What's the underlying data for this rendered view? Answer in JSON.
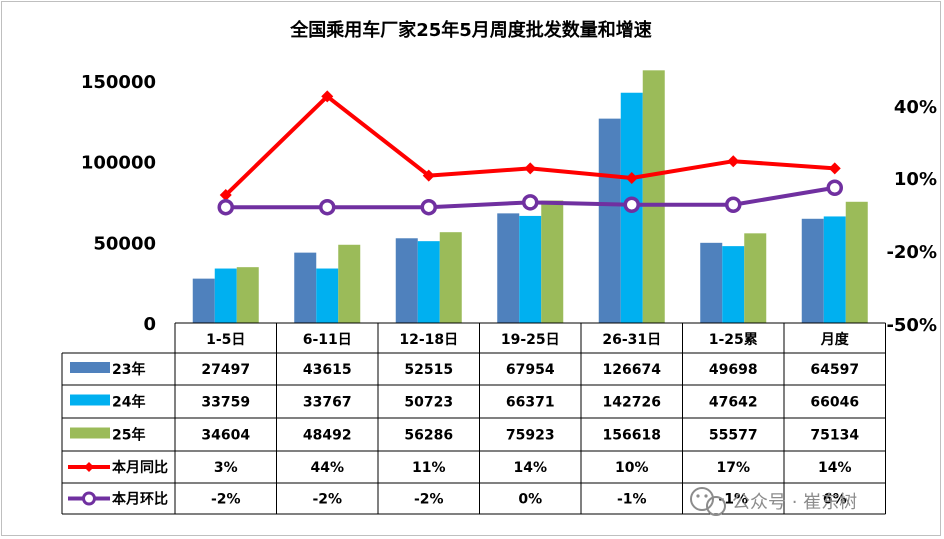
{
  "chart_data": {
    "type": "bar",
    "title": "全国乘用车厂家25年5月周度批发数量和增速",
    "categories": [
      "1-5日",
      "6-11日",
      "12-18日",
      "19-25日",
      "26-31日",
      "1-25累",
      "月度"
    ],
    "y_left": {
      "ticks": [
        "150000",
        "100000",
        "50000",
        "0"
      ],
      "ylim": [
        0,
        150000
      ]
    },
    "y_right": {
      "ticks": [
        "40%",
        "10%",
        "-20%",
        "-50%"
      ],
      "ylim": [
        -50,
        50
      ]
    },
    "series": [
      {
        "name": "23年",
        "kind": "bar",
        "color": "#4f81bd",
        "values": [
          27497,
          43615,
          52515,
          67954,
          126674,
          49698,
          64597
        ],
        "labels": [
          "27497",
          "43615",
          "52515",
          "67954",
          "126674",
          "49698",
          "64597"
        ]
      },
      {
        "name": "24年",
        "kind": "bar",
        "color": "#00b0f0",
        "values": [
          33759,
          33767,
          50723,
          66371,
          142726,
          47642,
          66046
        ],
        "labels": [
          "33759",
          "33767",
          "50723",
          "66371",
          "142726",
          "47642",
          "66046"
        ]
      },
      {
        "name": "25年",
        "kind": "bar",
        "color": "#9bbb59",
        "values": [
          34604,
          48492,
          56286,
          75923,
          156618,
          55577,
          75134
        ],
        "labels": [
          "34604",
          "48492",
          "56286",
          "75923",
          "156618",
          "55577",
          "75134"
        ]
      },
      {
        "name": "本月同比",
        "kind": "line",
        "axis": "right",
        "color": "#ff0000",
        "marker": "diamond",
        "values": [
          3,
          44,
          11,
          14,
          10,
          17,
          14
        ],
        "labels": [
          "3%",
          "44%",
          "11%",
          "14%",
          "10%",
          "17%",
          "14%"
        ]
      },
      {
        "name": "本月环比",
        "kind": "line",
        "axis": "right",
        "color": "#7030a0",
        "marker": "circle",
        "values": [
          -2,
          -2,
          -2,
          0,
          -1,
          -1,
          6
        ],
        "labels": [
          "-2%",
          "-2%",
          "-2%",
          "0%",
          "-1%",
          "-1%",
          "6%"
        ]
      }
    ],
    "legend": "table-left",
    "grid": false
  },
  "watermark": {
    "text": "公众号 · 崔东树",
    "icon": "wechat-icon"
  }
}
